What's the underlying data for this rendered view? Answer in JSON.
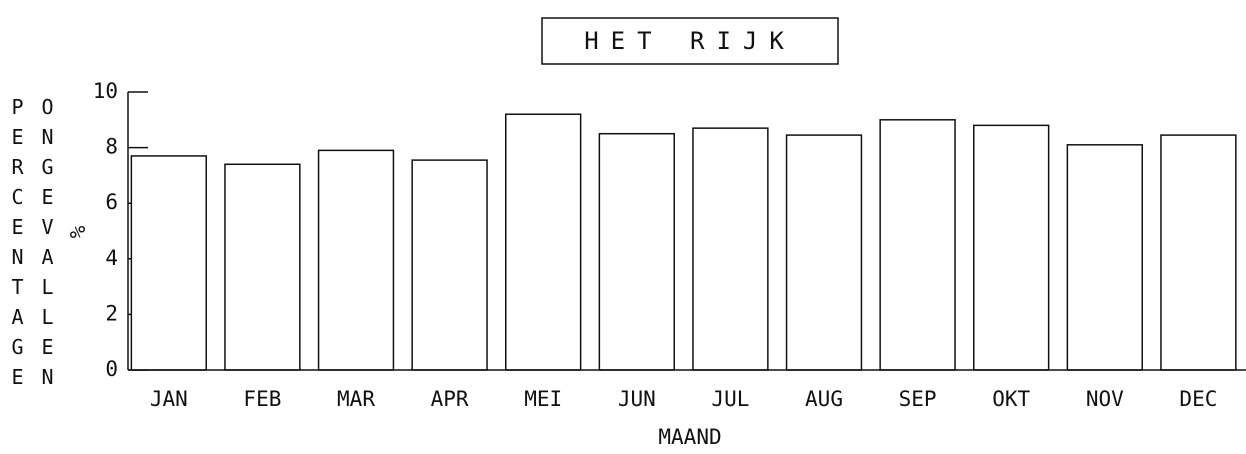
{
  "chart_data": {
    "type": "bar",
    "title": "HET RIJK",
    "x_label": "MAAND",
    "y_label_1": "PERCENTAGE",
    "y_label_2": "ONGEVALLEN",
    "y_unit": "%",
    "categories": [
      "JAN",
      "FEB",
      "MAR",
      "APR",
      "MEI",
      "JUN",
      "JUL",
      "AUG",
      "SEP",
      "OKT",
      "NOV",
      "DEC"
    ],
    "values": [
      7.7,
      7.4,
      7.9,
      7.55,
      9.2,
      8.5,
      8.7,
      8.45,
      9.0,
      8.8,
      8.1,
      8.45
    ],
    "color": "#ffffff",
    "ylim": [
      0,
      10
    ],
    "yticks": [
      0,
      2,
      4,
      6,
      8,
      10
    ],
    "grid": false
  }
}
